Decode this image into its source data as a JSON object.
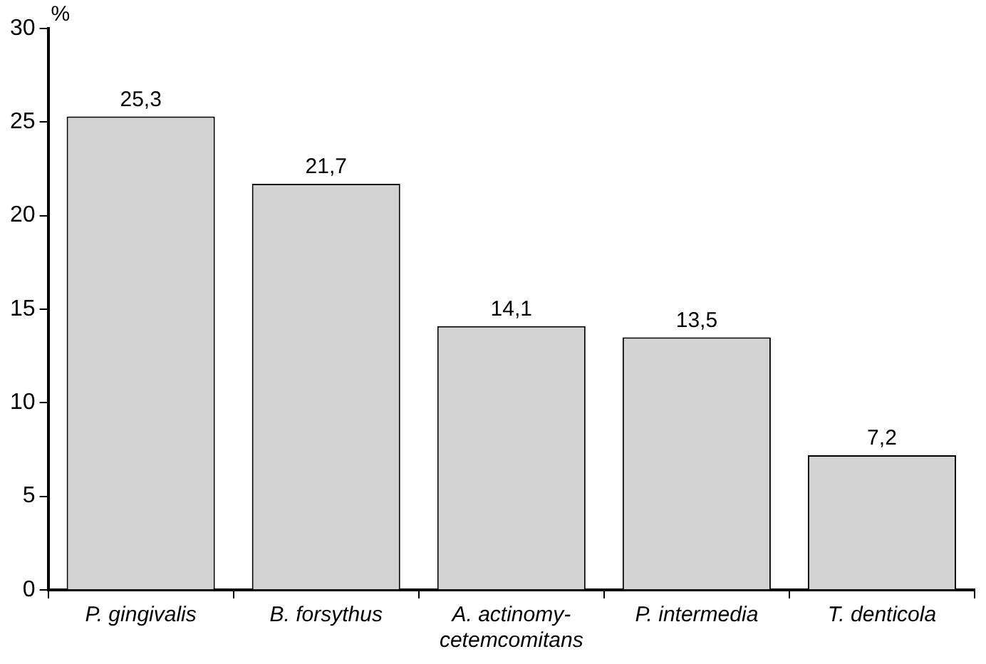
{
  "chart_data": {
    "type": "bar",
    "ylabel": "%",
    "categories": [
      "P. gingivalis",
      "B. forsythus",
      "A. actinomy-cetemcomitans",
      "P. intermedia",
      "T. denticola"
    ],
    "values": [
      25.3,
      21.7,
      14.1,
      13.5,
      7.2
    ],
    "value_labels": [
      "25,3",
      "21,7",
      "14,1",
      "13,5",
      "7,2"
    ],
    "color": "#d3d3d3",
    "ylim": [
      0,
      30
    ],
    "yticks": [
      0,
      5,
      10,
      15,
      20,
      25,
      30
    ],
    "grid": false,
    "legend": false
  }
}
